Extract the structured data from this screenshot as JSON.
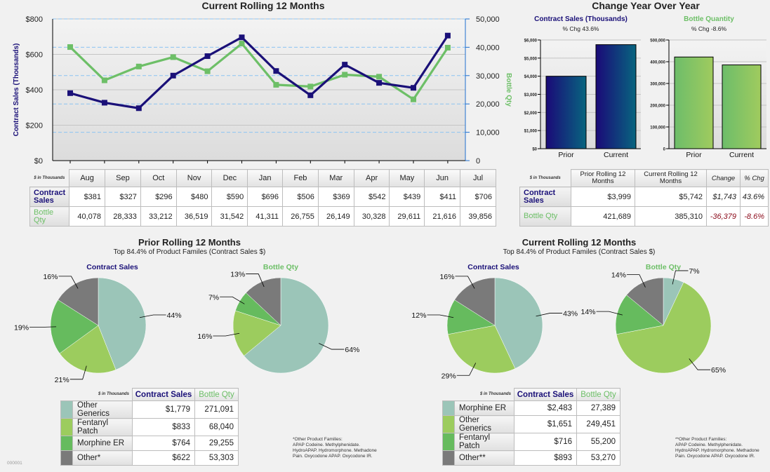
{
  "colors": {
    "navy": "#1a1078",
    "green": "#6dbf67",
    "teal": "#9bc5b8",
    "lightgreen": "#9ccc5e",
    "midgreen": "#66bb5e",
    "gray": "#7a7a7a"
  },
  "chart_data": [
    {
      "type": "line",
      "title": "Current Rolling 12 Months",
      "ylabel": "Contract Sales (Thousands)",
      "y2label": "Bottle Qty",
      "categories": [
        "Aug",
        "Sep",
        "Oct",
        "Nov",
        "Dec",
        "Jan",
        "Feb",
        "Mar",
        "Apr",
        "May",
        "Jun",
        "Jul"
      ],
      "ylim": [
        0,
        800
      ],
      "yticks": [
        "$0",
        "$200",
        "$400",
        "$600",
        "$800"
      ],
      "y2lim": [
        0,
        50000
      ],
      "y2ticks": [
        "0",
        "10,000",
        "20,000",
        "30,000",
        "40,000",
        "50,000"
      ],
      "series": [
        {
          "name": "Contract Sales",
          "axis": "left",
          "values": [
            381,
            327,
            296,
            480,
            590,
            696,
            506,
            369,
            542,
            439,
            411,
            706
          ]
        },
        {
          "name": "Bottle Qty",
          "axis": "right",
          "values": [
            40078,
            28333,
            33212,
            36519,
            31542,
            41311,
            26755,
            26149,
            30328,
            29611,
            21616,
            39856
          ]
        }
      ]
    },
    {
      "type": "bar",
      "title": "Contract Sales (Thousands)",
      "subtitle": "% Chg 43.6%",
      "categories": [
        "Prior",
        "Current"
      ],
      "values": [
        3999,
        5742
      ],
      "ylim": [
        0,
        6000
      ],
      "yticks": [
        "$0",
        "$1,000",
        "$2,000",
        "$3,000",
        "$4,000",
        "$5,000",
        "$6,000"
      ]
    },
    {
      "type": "bar",
      "title": "Bottle Quantity",
      "subtitle": "% Chg -8.6%",
      "categories": [
        "Prior",
        "Current"
      ],
      "values": [
        421689,
        385310
      ],
      "ylim": [
        0,
        500000
      ],
      "yticks": [
        "0",
        "100,000",
        "200,000",
        "300,000",
        "400,000",
        "500,000"
      ]
    },
    {
      "type": "pie",
      "title": "Contract Sales",
      "group": "prior",
      "labels": [
        "Other Generics",
        "Fentanyl Patch",
        "Morphine ER",
        "Other*"
      ],
      "values": [
        44,
        21,
        19,
        16
      ]
    },
    {
      "type": "pie",
      "title": "Bottle Qty",
      "group": "prior",
      "labels": [
        "Other Generics",
        "Fentanyl Patch",
        "Morphine ER",
        "Other*"
      ],
      "values": [
        64,
        16,
        7,
        13
      ]
    },
    {
      "type": "pie",
      "title": "Contract Sales",
      "group": "current",
      "labels": [
        "Morphine ER",
        "Other Generics",
        "Fentanyl Patch",
        "Other**"
      ],
      "values": [
        43,
        29,
        12,
        16
      ]
    },
    {
      "type": "pie",
      "title": "Bottle Qty",
      "group": "current",
      "labels": [
        "Morphine ER",
        "Other Generics",
        "Fentanyl Patch",
        "Other**"
      ],
      "values": [
        7,
        65,
        14,
        14
      ]
    }
  ],
  "yoy": {
    "title": "Change Year Over Year"
  },
  "monthly_table": {
    "corner": "$ in Thousands",
    "rows": [
      {
        "label": "Contract Sales",
        "values": [
          "$381",
          "$327",
          "$296",
          "$480",
          "$590",
          "$696",
          "$506",
          "$369",
          "$542",
          "$439",
          "$411",
          "$706"
        ]
      },
      {
        "label": "Bottle Qty",
        "values": [
          "40,078",
          "28,333",
          "33,212",
          "36,519",
          "31,542",
          "41,311",
          "26,755",
          "26,149",
          "30,328",
          "29,611",
          "21,616",
          "39,856"
        ]
      }
    ]
  },
  "yoy_table": {
    "corner": "$ in Thousands",
    "headers": [
      "Prior Rolling 12 Months",
      "Current Rolling 12 Months",
      "Change",
      "% Chg"
    ],
    "rows": [
      {
        "label": "Contract Sales",
        "values": [
          "$3,999",
          "$5,742",
          "$1,743",
          "43.6%"
        ]
      },
      {
        "label": "Bottle Qty",
        "values": [
          "421,689",
          "385,310",
          "-36,379",
          "-8.6%"
        ]
      }
    ]
  },
  "prior": {
    "title": "Prior Rolling 12 Months",
    "subtitle": "Top 84.4% of Product Familes (Contract Sales $)",
    "table": {
      "corner": "$ in Thousands",
      "h1": "Contract Sales",
      "h2": "Bottle Qty",
      "rows": [
        [
          "Other Generics",
          "$1,779",
          "271,091"
        ],
        [
          "Fentanyl Patch",
          "$833",
          "68,040"
        ],
        [
          "Morphine ER",
          "$764",
          "29,255"
        ],
        [
          "Other*",
          "$622",
          "53,303"
        ]
      ]
    },
    "footnote": [
      "*Other Product Families:",
      "APAP Codeine. Methylphenidate.",
      "HydroAPAP. Hydromorphone. Methadone",
      "Pain. Oxycodone APAP. Oxycodone IR."
    ]
  },
  "current": {
    "title": "Current Rolling 12 Months",
    "subtitle": "Top 84.4% of Product Familes (Contract Sales $)",
    "table": {
      "corner": "$ in Thousands",
      "h1": "Contract Sales",
      "h2": "Bottle Qty",
      "rows": [
        [
          "Morphine ER",
          "$2,483",
          "27,389"
        ],
        [
          "Other Generics",
          "$1,651",
          "249,451"
        ],
        [
          "Fentanyl Patch",
          "$716",
          "55,200"
        ],
        [
          "Other**",
          "$893",
          "53,270"
        ]
      ]
    },
    "footnote": [
      "**Other Product Families:",
      "APAP Codeine. Methylphenidate.",
      "HydroAPAP. Hydromorphone. Methadone",
      "Pain. Oxycodone APAP. Oxycodone IR."
    ]
  },
  "page_id": "000001"
}
